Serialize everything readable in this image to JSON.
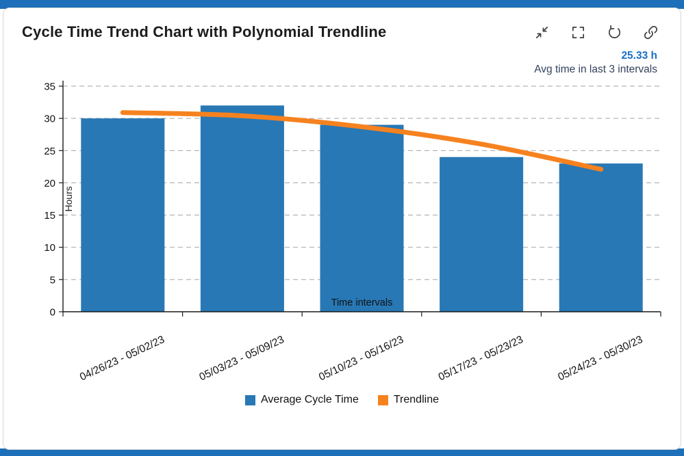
{
  "page": {
    "accent_color": "#1c6fb8"
  },
  "card": {
    "title": "Cycle Time Trend Chart with Polynomial Trendline",
    "toolbar_icons": [
      "collapse",
      "fullscreen",
      "reset",
      "link"
    ]
  },
  "summary": {
    "value": "25.33 h",
    "value_color": "#1a6fc4",
    "label": "Avg time in last 3 intervals"
  },
  "chart_data": {
    "type": "bar",
    "title": "",
    "xlabel": "Time intervals",
    "ylabel": "Hours",
    "ylim": [
      0,
      35
    ],
    "ytick_step": 5,
    "grid": "dashed-horizontal",
    "legend_position": "bottom",
    "categories": [
      "04/26/23 - 05/02/23",
      "05/03/23 - 05/09/23",
      "05/10/23 - 05/16/23",
      "05/17/23 - 05/23/23",
      "05/24/23 - 05/30/23"
    ],
    "series": [
      {
        "name": "Average Cycle Time",
        "type": "bar",
        "color": "#2878b5",
        "values": [
          30,
          32,
          29,
          24,
          23
        ]
      },
      {
        "name": "Trendline",
        "type": "line",
        "color": "#f6821f",
        "values": [
          30.9,
          30.4,
          28.7,
          26.0,
          22.1
        ]
      }
    ]
  }
}
